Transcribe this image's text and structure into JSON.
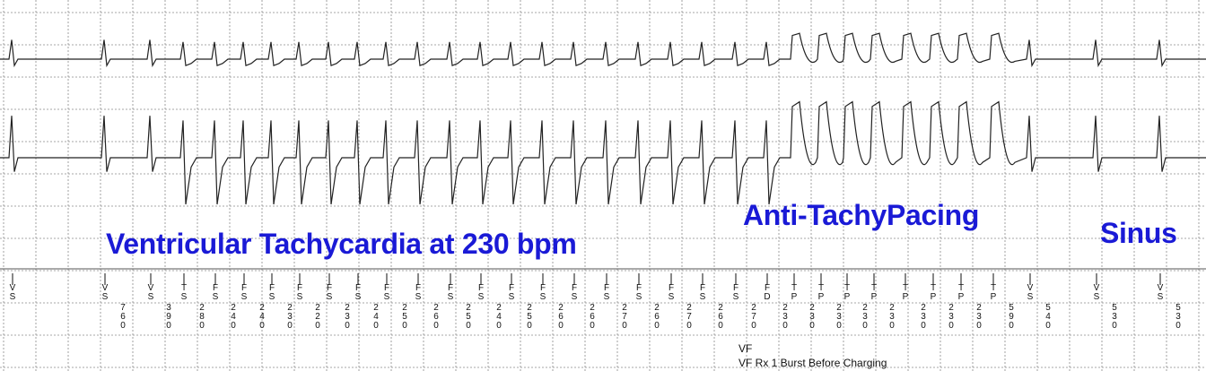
{
  "labels": {
    "vt": "Ventricular Tachycardia at 230 bpm",
    "atp": "Anti-TachyPacing",
    "sinus": "Sinus"
  },
  "annotations": {
    "vf": "VF",
    "rx": "VF Rx 1 Burst Before Charging"
  },
  "colors": {
    "label": "#1a1ad6",
    "grid": "#8a8a8a",
    "trace": "#222222"
  },
  "marker_channel": [
    {
      "mark": "VS",
      "interval": ""
    },
    {
      "mark": "VS",
      "interval": "760"
    },
    {
      "mark": "VS",
      "interval": "390"
    },
    {
      "mark": "TS",
      "interval": "280"
    },
    {
      "mark": "FS",
      "interval": "240"
    },
    {
      "mark": "FS",
      "interval": "240"
    },
    {
      "mark": "FS",
      "interval": "230"
    },
    {
      "mark": "FS",
      "interval": "220"
    },
    {
      "mark": "FS",
      "interval": "230"
    },
    {
      "mark": "FS",
      "interval": "240"
    },
    {
      "mark": "FS",
      "interval": "250"
    },
    {
      "mark": "FS",
      "interval": "260"
    },
    {
      "mark": "FS",
      "interval": "250"
    },
    {
      "mark": "FS",
      "interval": "240"
    },
    {
      "mark": "FS",
      "interval": "250"
    },
    {
      "mark": "FS",
      "interval": "260"
    },
    {
      "mark": "FS",
      "interval": "260"
    },
    {
      "mark": "FS",
      "interval": "270"
    },
    {
      "mark": "FS",
      "interval": "260"
    },
    {
      "mark": "FS",
      "interval": "270"
    },
    {
      "mark": "FS",
      "interval": "260"
    },
    {
      "mark": "FS",
      "interval": "270"
    },
    {
      "mark": "FD",
      "interval": "230"
    },
    {
      "mark": "TP",
      "interval": "230"
    },
    {
      "mark": "TP",
      "interval": "230"
    },
    {
      "mark": "TP",
      "interval": "230"
    },
    {
      "mark": "TP",
      "interval": "230"
    },
    {
      "mark": "TP",
      "interval": "230"
    },
    {
      "mark": "TP",
      "interval": "230"
    },
    {
      "mark": "TP",
      "interval": "230"
    },
    {
      "mark": "TP",
      "interval": "590"
    },
    {
      "mark": "VS",
      "interval": "540"
    },
    {
      "mark": "VS",
      "interval": "530"
    },
    {
      "mark": "VS",
      "interval": "530"
    }
  ]
}
